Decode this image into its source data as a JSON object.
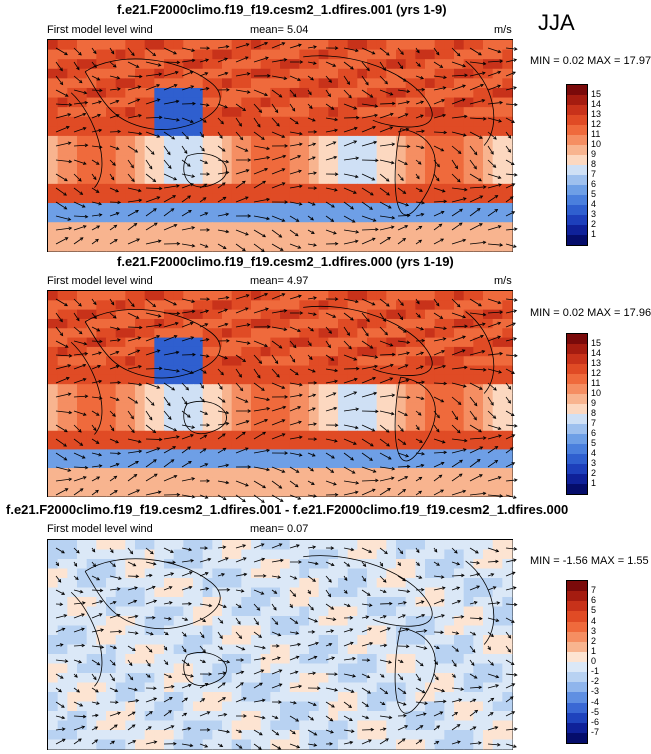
{
  "season": "JJA",
  "panels": [
    {
      "title": "f.e21.F2000climo.f19_f19.cesm2_1.dfires.001 (yrs 1-9)",
      "left_label": "First model level wind",
      "mean_text": "mean=  5.04",
      "units": "m/s",
      "minmax": "MIN =  0.02 MAX =  17.97",
      "colorbar_labels": [
        "15",
        "14",
        "13",
        "12",
        "11",
        "10",
        "9",
        "8",
        "7",
        "6",
        "5",
        "4",
        "3",
        "2",
        "1"
      ],
      "colors": [
        "#7a0a0a",
        "#a51c10",
        "#c8321a",
        "#e04b25",
        "#ef6a3c",
        "#f58e62",
        "#f8b48f",
        "#fcd8c0",
        "#cfe0f5",
        "#9ec0ee",
        "#6e9fe6",
        "#4a7fdd",
        "#2f5fcf",
        "#1d3fbb",
        "#0f2199",
        "#050d6b"
      ]
    },
    {
      "title": "f.e21.F2000climo.f19_f19.cesm2_1.dfires.000 (yrs 1-19)",
      "left_label": "First model level wind",
      "mean_text": "mean=  4.97",
      "units": "m/s",
      "minmax": "MIN =  0.02 MAX =  17.96",
      "colorbar_labels": [
        "15",
        "14",
        "13",
        "12",
        "11",
        "10",
        "9",
        "8",
        "7",
        "6",
        "5",
        "4",
        "3",
        "2",
        "1"
      ],
      "colors": [
        "#7a0a0a",
        "#a51c10",
        "#c8321a",
        "#e04b25",
        "#ef6a3c",
        "#f58e62",
        "#f8b48f",
        "#fcd8c0",
        "#cfe0f5",
        "#9ec0ee",
        "#6e9fe6",
        "#4a7fdd",
        "#2f5fcf",
        "#1d3fbb",
        "#0f2199",
        "#050d6b"
      ]
    },
    {
      "title": "f.e21.F2000climo.f19_f19.cesm2_1.dfires.001 - f.e21.F2000climo.f19_f19.cesm2_1.dfires.000",
      "left_label": "First model level wind",
      "mean_text": "mean=  0.07",
      "units": "",
      "minmax": "MIN = -1.56 MAX =  1.55",
      "colorbar_labels": [
        "7",
        "6",
        "5",
        "4",
        "3",
        "2",
        "1",
        "0",
        "-1",
        "-2",
        "-3",
        "-4",
        "-5",
        "-6",
        "-7"
      ],
      "colors": [
        "#7a0a0a",
        "#a51c10",
        "#c8321a",
        "#e04b25",
        "#ef6a3c",
        "#f58e62",
        "#f8b48f",
        "#fde4d2",
        "#dbe8f7",
        "#b8d2f2",
        "#8fb5ec",
        "#5f8fe2",
        "#3a68d4",
        "#1f43bd",
        "#0f2199",
        "#050d6b"
      ]
    }
  ]
}
